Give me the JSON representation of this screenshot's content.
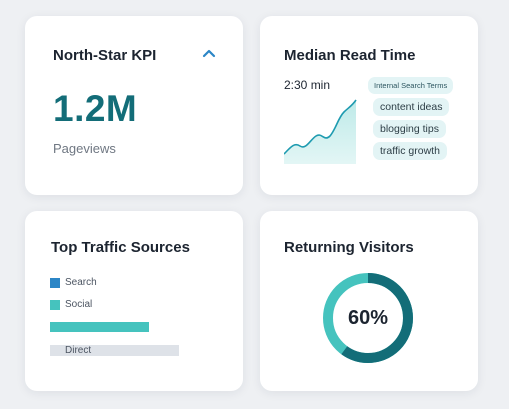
{
  "colors": {
    "primary": "#136d78",
    "accent": "#45c3be",
    "search": "#2c86c6",
    "muted": "#dee2e8"
  },
  "kpi_card": {
    "title": "North-Star KPI",
    "collapse_icon": "chevron-up-icon",
    "value": "1.2M",
    "caption": "Pageviews"
  },
  "read_time_card": {
    "title": "Median Read Time",
    "value": "2:30 min",
    "terms_heading": "Internal Search Terms",
    "terms": [
      "content ideas",
      "blogging tips",
      "traffic growth"
    ]
  },
  "traffic_card": {
    "title": "Top Traffic Sources",
    "sources": [
      {
        "label": "Search",
        "color": "#2c86c6"
      },
      {
        "label": "Social",
        "color": "#45c3be",
        "share": 0.77
      },
      {
        "label": "Direct",
        "color": "#dee2e8",
        "share": 1.0
      }
    ]
  },
  "returning_card": {
    "title": "Returning Visitors",
    "value_label": "60%",
    "value": 0.6
  }
}
